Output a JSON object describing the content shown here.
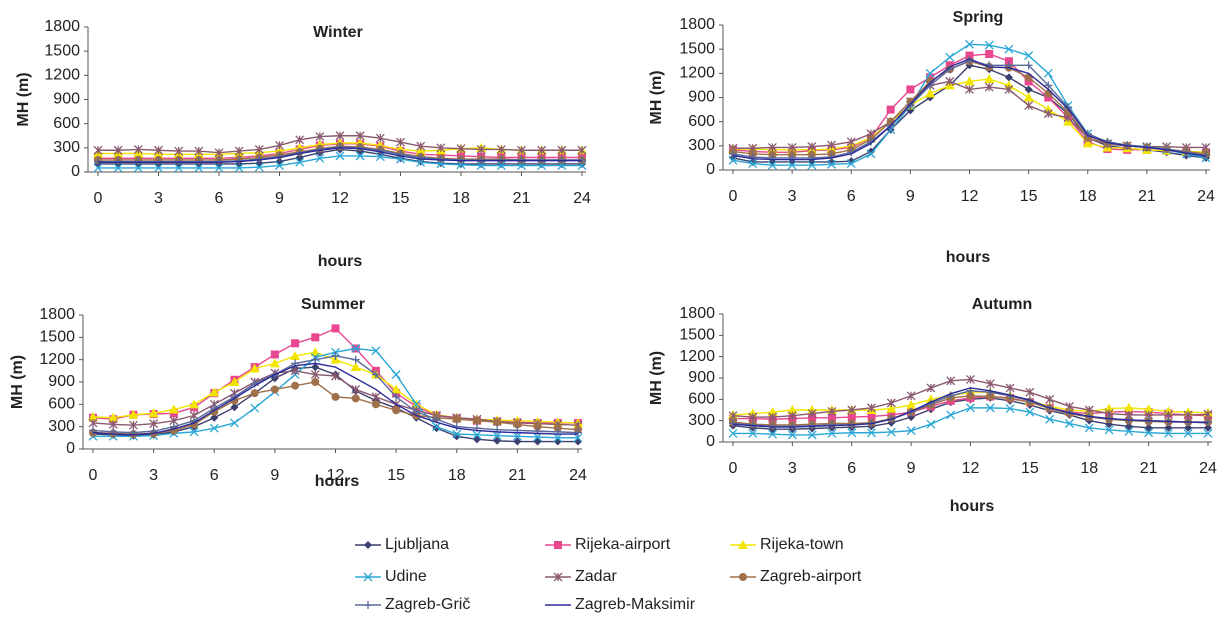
{
  "chart_data": [
    {
      "type": "line",
      "title": "Winter",
      "xlabel": "hours",
      "ylabel": "MH (m)",
      "x": [
        0,
        1,
        2,
        3,
        4,
        5,
        6,
        7,
        8,
        9,
        10,
        11,
        12,
        13,
        14,
        15,
        16,
        17,
        18,
        19,
        20,
        21,
        22,
        23,
        24
      ],
      "xlim": [
        0,
        24
      ],
      "xticks": [
        0,
        3,
        6,
        9,
        12,
        15,
        18,
        21,
        24
      ],
      "ylim": [
        0,
        1800
      ],
      "yticks": [
        0,
        300,
        600,
        900,
        1200,
        1500,
        1800
      ],
      "series": [
        {
          "values": [
            100,
            100,
            100,
            100,
            100,
            100,
            100,
            100,
            110,
            130,
            180,
            240,
            280,
            260,
            220,
            170,
            130,
            110,
            100,
            100,
            100,
            100,
            100,
            100,
            100
          ]
        },
        {
          "values": [
            170,
            170,
            170,
            170,
            170,
            170,
            170,
            180,
            200,
            230,
            280,
            330,
            350,
            350,
            320,
            260,
            220,
            210,
            200,
            190,
            180,
            180,
            180,
            180,
            180
          ]
        },
        {
          "values": [
            230,
            230,
            230,
            220,
            220,
            220,
            220,
            230,
            240,
            260,
            300,
            340,
            360,
            360,
            330,
            280,
            260,
            270,
            290,
            300,
            280,
            270,
            270,
            270,
            270
          ]
        },
        {
          "values": [
            50,
            50,
            50,
            50,
            50,
            50,
            50,
            50,
            60,
            80,
            120,
            170,
            200,
            200,
            190,
            160,
            120,
            100,
            90,
            80,
            80,
            80,
            80,
            80,
            80
          ]
        },
        {
          "values": [
            270,
            270,
            280,
            270,
            260,
            260,
            240,
            260,
            280,
            330,
            400,
            440,
            450,
            450,
            420,
            370,
            320,
            300,
            290,
            280,
            280,
            270,
            270,
            270,
            270
          ]
        },
        {
          "values": [
            150,
            150,
            150,
            150,
            150,
            150,
            150,
            160,
            180,
            210,
            250,
            290,
            320,
            310,
            280,
            230,
            190,
            170,
            160,
            160,
            160,
            150,
            150,
            150,
            150
          ]
        },
        {
          "values": [
            130,
            130,
            130,
            130,
            130,
            130,
            130,
            140,
            160,
            190,
            240,
            280,
            310,
            300,
            270,
            220,
            180,
            160,
            150,
            150,
            150,
            150,
            150,
            150,
            150
          ]
        },
        {
          "values": [
            120,
            120,
            120,
            120,
            120,
            120,
            120,
            130,
            150,
            180,
            230,
            270,
            300,
            290,
            250,
            200,
            160,
            150,
            140,
            140,
            140,
            140,
            140,
            140,
            140
          ]
        }
      ]
    },
    {
      "type": "line",
      "title": "Spring",
      "xlabel": "hours",
      "ylabel": "MH (m)",
      "x": [
        0,
        1,
        2,
        3,
        4,
        5,
        6,
        7,
        8,
        9,
        10,
        11,
        12,
        13,
        14,
        15,
        16,
        17,
        18,
        19,
        20,
        21,
        22,
        23,
        24
      ],
      "xlim": [
        0,
        24
      ],
      "xticks": [
        0,
        3,
        6,
        9,
        12,
        15,
        18,
        21,
        24
      ],
      "ylim": [
        0,
        1800
      ],
      "yticks": [
        0,
        300,
        600,
        900,
        1200,
        1500,
        1800
      ],
      "series": [
        {
          "values": [
            150,
            100,
            100,
            100,
            100,
            100,
            110,
            230,
            500,
            740,
            900,
            1050,
            1300,
            1250,
            1150,
            1000,
            900,
            700,
            400,
            300,
            270,
            250,
            220,
            180,
            150
          ]
        },
        {
          "values": [
            250,
            230,
            220,
            220,
            240,
            250,
            280,
            400,
            750,
            1000,
            1150,
            1300,
            1420,
            1440,
            1350,
            1100,
            900,
            650,
            350,
            260,
            250,
            250,
            240,
            230,
            220
          ]
        },
        {
          "values": [
            260,
            260,
            250,
            250,
            250,
            260,
            300,
            400,
            600,
            800,
            950,
            1050,
            1100,
            1130,
            1050,
            900,
            750,
            600,
            330,
            280,
            270,
            250,
            240,
            230,
            220
          ]
        },
        {
          "values": [
            120,
            80,
            60,
            60,
            60,
            70,
            80,
            200,
            500,
            800,
            1200,
            1400,
            1560,
            1550,
            1500,
            1420,
            1200,
            800,
            450,
            330,
            300,
            280,
            250,
            200,
            150
          ]
        },
        {
          "values": [
            270,
            270,
            280,
            280,
            290,
            310,
            350,
            450,
            600,
            850,
            1050,
            1100,
            1000,
            1030,
            1000,
            800,
            700,
            650,
            400,
            320,
            300,
            290,
            290,
            280,
            280
          ]
        },
        {
          "values": [
            230,
            200,
            190,
            190,
            190,
            200,
            250,
            380,
            600,
            850,
            1100,
            1250,
            1350,
            1280,
            1270,
            1150,
            950,
            720,
            400,
            330,
            300,
            280,
            260,
            230,
            200
          ]
        },
        {
          "values": [
            200,
            160,
            150,
            150,
            150,
            160,
            220,
            350,
            550,
            800,
            1050,
            1250,
            1360,
            1300,
            1300,
            1300,
            1050,
            780,
            450,
            350,
            310,
            290,
            260,
            220,
            180
          ]
        },
        {
          "values": [
            180,
            140,
            130,
            130,
            130,
            150,
            200,
            330,
            550,
            820,
            1080,
            1280,
            1380,
            1280,
            1270,
            1200,
            1000,
            760,
            430,
            340,
            300,
            280,
            250,
            210,
            170
          ]
        }
      ]
    },
    {
      "type": "line",
      "title": "Summer",
      "xlabel": "hours",
      "ylabel": "MH (m)",
      "x": [
        0,
        1,
        2,
        3,
        4,
        5,
        6,
        7,
        8,
        9,
        10,
        11,
        12,
        13,
        14,
        15,
        16,
        17,
        18,
        19,
        20,
        21,
        22,
        23,
        24
      ],
      "xlim": [
        0,
        24
      ],
      "xticks": [
        0,
        3,
        6,
        9,
        12,
        15,
        18,
        21,
        24
      ],
      "ylim": [
        0,
        1800
      ],
      "yticks": [
        0,
        300,
        600,
        900,
        1200,
        1500,
        1800
      ],
      "series": [
        {
          "values": [
            200,
            190,
            180,
            190,
            230,
            300,
            420,
            560,
            750,
            950,
            1080,
            1100,
            1000,
            780,
            650,
            550,
            420,
            280,
            170,
            130,
            110,
            100,
            100,
            100,
            100
          ]
        },
        {
          "values": [
            420,
            400,
            460,
            470,
            480,
            560,
            750,
            930,
            1100,
            1270,
            1420,
            1500,
            1620,
            1350,
            1050,
            750,
            570,
            450,
            410,
            380,
            370,
            360,
            350,
            350,
            350
          ]
        },
        {
          "values": [
            430,
            420,
            460,
            480,
            530,
            600,
            760,
            900,
            1080,
            1150,
            1250,
            1300,
            1200,
            1100,
            1000,
            800,
            600,
            460,
            420,
            400,
            390,
            380,
            370,
            360,
            350
          ]
        },
        {
          "values": [
            170,
            170,
            170,
            180,
            210,
            230,
            280,
            350,
            550,
            770,
            1000,
            1230,
            1300,
            1350,
            1320,
            1000,
            600,
            300,
            200,
            190,
            180,
            170,
            160,
            150,
            150
          ]
        },
        {
          "values": [
            350,
            330,
            320,
            340,
            380,
            450,
            600,
            750,
            900,
            1020,
            1050,
            1000,
            980,
            800,
            700,
            600,
            520,
            450,
            420,
            400,
            370,
            350,
            340,
            330,
            320
          ]
        },
        {
          "values": [
            220,
            210,
            200,
            210,
            250,
            330,
            500,
            650,
            750,
            800,
            850,
            900,
            700,
            680,
            600,
            520,
            450,
            420,
            400,
            380,
            360,
            330,
            300,
            280,
            260
          ]
        },
        {
          "values": [
            250,
            230,
            220,
            240,
            300,
            380,
            550,
            700,
            880,
            1000,
            1150,
            1200,
            1250,
            1200,
            1000,
            700,
            500,
            400,
            300,
            280,
            260,
            250,
            240,
            230,
            220
          ]
        },
        {
          "values": [
            220,
            200,
            190,
            210,
            270,
            350,
            520,
            680,
            850,
            1000,
            1120,
            1150,
            1100,
            950,
            800,
            600,
            450,
            360,
            280,
            250,
            230,
            220,
            210,
            200,
            200
          ]
        }
      ]
    },
    {
      "type": "line",
      "title": "Autumn",
      "xlabel": "hours",
      "ylabel": "MH (m)",
      "x": [
        0,
        1,
        2,
        3,
        4,
        5,
        6,
        7,
        8,
        9,
        10,
        11,
        12,
        13,
        14,
        15,
        16,
        17,
        18,
        19,
        20,
        21,
        22,
        23,
        24
      ],
      "xlim": [
        0,
        24
      ],
      "xticks": [
        0,
        3,
        6,
        9,
        12,
        15,
        18,
        21,
        24
      ],
      "ylim": [
        0,
        1800
      ],
      "yticks": [
        0,
        300,
        600,
        900,
        1200,
        1500,
        1800
      ],
      "series": [
        {
          "values": [
            230,
            200,
            180,
            180,
            190,
            200,
            210,
            220,
            270,
            350,
            460,
            560,
            600,
            620,
            580,
            520,
            440,
            380,
            300,
            250,
            220,
            200,
            200,
            200,
            200
          ]
        },
        {
          "values": [
            330,
            330,
            320,
            330,
            340,
            340,
            350,
            360,
            380,
            420,
            500,
            580,
            620,
            640,
            620,
            560,
            480,
            420,
            400,
            420,
            430,
            420,
            400,
            380,
            370
          ]
        },
        {
          "values": [
            380,
            400,
            420,
            450,
            450,
            450,
            450,
            450,
            470,
            520,
            600,
            650,
            700,
            700,
            650,
            580,
            500,
            450,
            430,
            470,
            480,
            460,
            430,
            420,
            410
          ]
        },
        {
          "values": [
            120,
            120,
            110,
            100,
            100,
            120,
            130,
            130,
            140,
            160,
            250,
            380,
            480,
            480,
            470,
            420,
            320,
            260,
            200,
            170,
            150,
            130,
            120,
            120,
            120
          ]
        },
        {
          "values": [
            370,
            350,
            350,
            370,
            400,
            430,
            450,
            480,
            550,
            650,
            760,
            860,
            880,
            820,
            760,
            700,
            600,
            500,
            450,
            400,
            380,
            380,
            380,
            380,
            390
          ]
        },
        {
          "values": [
            280,
            250,
            240,
            240,
            250,
            260,
            260,
            270,
            330,
            420,
            520,
            620,
            650,
            640,
            610,
            560,
            470,
            400,
            350,
            320,
            300,
            290,
            280,
            280,
            280
          ]
        },
        {
          "values": [
            260,
            240,
            220,
            220,
            230,
            240,
            240,
            260,
            320,
            420,
            540,
            650,
            720,
            700,
            650,
            580,
            480,
            410,
            360,
            330,
            310,
            300,
            290,
            280,
            280
          ]
        },
        {
          "values": [
            250,
            230,
            210,
            210,
            220,
            230,
            240,
            260,
            320,
            430,
            560,
            680,
            760,
            720,
            660,
            590,
            480,
            410,
            360,
            330,
            310,
            300,
            290,
            280,
            270
          ]
        }
      ]
    }
  ],
  "legend": {
    "entries": [
      {
        "name": "Ljubljana",
        "color": "#3b3f6e",
        "marker": "diamond"
      },
      {
        "name": "Rijeka-airport",
        "color": "#e8468f",
        "marker": "square"
      },
      {
        "name": "Rijeka-town",
        "color": "#f2e600",
        "marker": "triangle"
      },
      {
        "name": "Udine",
        "color": "#2aa7d6",
        "marker": "x"
      },
      {
        "name": "Zadar",
        "color": "#8a5a70",
        "marker": "star"
      },
      {
        "name": "Zagreb-airport",
        "color": "#a0704a",
        "marker": "circle"
      },
      {
        "name": "Zagreb-Grič",
        "color": "#5a6a9a",
        "marker": "plus"
      },
      {
        "name": "Zagreb-Maksimir",
        "color": "#2a2a9a",
        "marker": "none"
      }
    ]
  }
}
